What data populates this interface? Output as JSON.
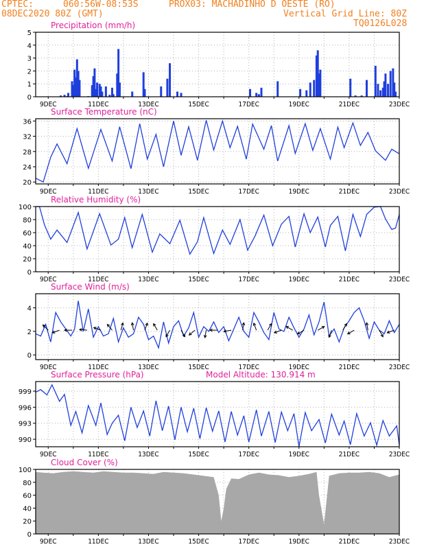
{
  "header": {
    "line1_left": "CPTEC:",
    "coords": "060:56W-08:53S",
    "location": "PROX03: MACHADINHO D OESTE (RO)",
    "line2_left": "08DEC2020 80Z (GMT)",
    "grid_note": "Vertical Grid Line: 80Z",
    "model": "TQ0126L028"
  },
  "colors": {
    "header": "#f08020",
    "title": "#e0209a",
    "series": "#1f3fdc",
    "cloud": "#a8a8a8",
    "grid": "#b0b0b0"
  },
  "chart_data": [
    {
      "type": "bar",
      "title": "Precipitation (mm/h)",
      "x_unit": "days since 08DEC2020 00Z",
      "xlim": [
        8.5,
        23
      ],
      "x_ticks": [
        "9DEC",
        "11DEC",
        "13DEC",
        "15DEC",
        "17DEC",
        "19DEC",
        "21DEC",
        "23DEC"
      ],
      "ylim": [
        0,
        5
      ],
      "y_ticks": [
        0,
        1,
        2,
        3,
        4,
        5
      ],
      "series": [
        {
          "x": [
            9.5,
            9.65,
            9.75,
            9.8,
            9.95,
            10.0,
            10.05,
            10.1,
            10.15,
            10.2,
            10.25,
            10.6,
            10.75,
            10.8,
            10.85,
            10.9,
            10.95,
            11.05,
            11.1,
            11.15,
            11.3,
            11.45,
            11.55,
            11.6,
            11.75,
            11.8,
            11.85,
            12.35,
            12.8,
            12.85,
            13.5,
            13.75,
            13.85,
            14.15,
            14.3,
            17.05,
            17.3,
            17.4,
            17.5,
            18.15,
            19.05,
            19.3,
            19.45,
            19.6,
            19.7,
            19.75,
            19.8,
            19.85,
            21.05,
            21.25,
            21.5,
            21.7,
            22.05,
            22.15,
            22.25,
            22.35,
            22.4,
            22.45,
            22.55,
            22.65,
            22.75,
            22.8,
            22.85
          ],
          "y": [
            0.1,
            0.15,
            0.05,
            0.3,
            1.2,
            0.9,
            2.1,
            1.5,
            2.9,
            2.0,
            1.3,
            0.05,
            0.9,
            1.6,
            2.2,
            0.6,
            1.1,
            1.0,
            0.8,
            0.4,
            0.8,
            0.15,
            0.7,
            0.2,
            1.8,
            3.7,
            1.1,
            0.4,
            1.9,
            0.6,
            0.8,
            1.4,
            2.6,
            0.4,
            0.3,
            0.6,
            0.3,
            0.2,
            0.7,
            1.2,
            0.6,
            0.5,
            1.1,
            1.3,
            3.2,
            3.6,
            1.8,
            2.1,
            1.4,
            0.1,
            0.1,
            1.3,
            2.4,
            1.0,
            0.5,
            0.7,
            1.2,
            1.8,
            1.0,
            2.0,
            2.2,
            1.1,
            0.4
          ]
        }
      ]
    },
    {
      "type": "line",
      "title": "Surface Temperature (nC)",
      "xlim": [
        8.5,
        23
      ],
      "ylim": [
        19.5,
        36.6
      ],
      "y_ticks": [
        20,
        24,
        28,
        32,
        36
      ],
      "series": [
        {
          "x": [
            8.5,
            8.8,
            9.1,
            9.35,
            9.75,
            10.15,
            10.6,
            11.1,
            11.55,
            11.85,
            12.3,
            12.65,
            12.95,
            13.3,
            13.6,
            14.0,
            14.3,
            14.6,
            14.95,
            15.3,
            15.6,
            15.95,
            16.25,
            16.55,
            16.9,
            17.15,
            17.6,
            17.9,
            18.15,
            18.6,
            18.85,
            19.25,
            19.55,
            19.85,
            20.25,
            20.55,
            20.8,
            21.15,
            21.45,
            21.75,
            22.05,
            22.45,
            22.7,
            23.0
          ],
          "y": [
            21,
            20,
            26.5,
            30,
            24.8,
            34,
            23.6,
            33.8,
            25.5,
            34.5,
            23.5,
            35.3,
            26,
            32.5,
            24,
            36,
            27,
            34.5,
            25.7,
            36.2,
            28.4,
            36,
            29,
            34.6,
            26,
            35.2,
            28.6,
            34.8,
            25.5,
            34.8,
            27.5,
            35.3,
            28.3,
            34,
            26,
            34.4,
            29,
            35.5,
            29.6,
            33,
            28.2,
            25.7,
            28.6,
            27.4
          ]
        }
      ]
    },
    {
      "type": "line",
      "title": "Relative Humidity (%)",
      "xlim": [
        8.5,
        23
      ],
      "ylim": [
        0,
        100
      ],
      "y_ticks": [
        0,
        20,
        40,
        60,
        80,
        100
      ],
      "series": [
        {
          "x": [
            8.5,
            8.65,
            8.85,
            9.1,
            9.35,
            9.75,
            10.2,
            10.55,
            11.05,
            11.5,
            11.8,
            12.05,
            12.35,
            12.75,
            13.15,
            13.45,
            13.85,
            14.25,
            14.65,
            14.95,
            15.2,
            15.6,
            15.95,
            16.25,
            16.65,
            16.95,
            17.25,
            17.6,
            17.95,
            18.3,
            18.6,
            18.85,
            19.2,
            19.45,
            19.75,
            20.05,
            20.25,
            20.55,
            20.85,
            21.15,
            21.45,
            21.7,
            22.0,
            22.25,
            22.45,
            22.7,
            22.85,
            23.0
          ],
          "y": [
            100,
            100,
            72,
            50,
            64,
            45,
            91,
            35,
            89,
            41,
            50,
            83,
            37,
            88,
            30,
            58,
            43,
            79,
            27,
            46,
            83,
            28,
            64,
            42,
            80,
            33,
            55,
            87,
            40,
            73,
            85,
            38,
            89,
            60,
            84,
            38,
            71,
            85,
            32,
            88,
            54,
            88,
            99,
            100,
            81,
            65,
            67,
            88
          ]
        }
      ]
    },
    {
      "type": "line",
      "title": "Surface Wind (m/s)",
      "xlim": [
        8.5,
        23
      ],
      "ylim": [
        -0.4,
        5.2
      ],
      "y_ticks": [
        0,
        2,
        4
      ],
      "series": [
        {
          "x": [
            8.5,
            8.7,
            8.9,
            9.1,
            9.3,
            9.5,
            9.7,
            9.9,
            10.05,
            10.2,
            10.4,
            10.6,
            10.8,
            11.0,
            11.2,
            11.4,
            11.6,
            11.8,
            12.0,
            12.2,
            12.4,
            12.6,
            12.8,
            13.0,
            13.2,
            13.4,
            13.6,
            13.8,
            14.0,
            14.2,
            14.4,
            14.6,
            14.8,
            15.0,
            15.2,
            15.4,
            15.6,
            15.8,
            16.0,
            16.2,
            16.4,
            16.6,
            16.8,
            17.0,
            17.2,
            17.4,
            17.6,
            17.8,
            18.0,
            18.2,
            18.4,
            18.6,
            18.8,
            19.0,
            19.2,
            19.4,
            19.6,
            19.8,
            20.0,
            20.2,
            20.4,
            20.6,
            20.8,
            21.0,
            21.2,
            21.4,
            21.6,
            21.8,
            22.0,
            22.2,
            22.4,
            22.6,
            22.8,
            23.0
          ],
          "y": [
            1.8,
            1.6,
            2.6,
            1.1,
            3.6,
            2.8,
            2.2,
            1.6,
            2.2,
            4.6,
            2.0,
            3.9,
            1.5,
            2.4,
            1.6,
            1.8,
            3.1,
            1.1,
            2.3,
            1.5,
            1.8,
            3.2,
            2.6,
            1.3,
            1.6,
            0.6,
            2.8,
            1.0,
            2.4,
            2.9,
            1.6,
            2.3,
            3.6,
            1.5,
            2.4,
            2.0,
            2.8,
            1.9,
            2.4,
            1.2,
            2.2,
            3.2,
            2.0,
            1.5,
            3.6,
            2.8,
            1.9,
            1.3,
            3.6,
            2.2,
            2.0,
            3.2,
            2.3,
            1.5,
            2.2,
            3.4,
            1.7,
            2.8,
            4.5,
            1.6,
            2.2,
            1.1,
            2.3,
            2.9,
            3.6,
            4.0,
            2.9,
            1.4,
            2.8,
            2.1,
            1.8,
            2.9,
            1.9,
            2.6
          ]
        }
      ],
      "vectors_x": [
        9.0,
        9.45,
        9.95,
        10.55,
        11.1,
        11.55,
        11.9,
        12.4,
        12.85,
        13.35,
        13.85,
        14.3,
        14.85,
        15.3,
        15.75,
        16.3,
        16.75,
        17.3,
        17.75,
        18.3,
        18.75,
        19.2,
        19.75,
        20.3,
        20.75,
        21.2,
        21.75,
        22.2,
        22.8
      ],
      "vectors_angle_deg": [
        135,
        200,
        180,
        175,
        160,
        130,
        75,
        100,
        70,
        120,
        240,
        300,
        220,
        260,
        180,
        190,
        80,
        110,
        60,
        200,
        150,
        210,
        30,
        250,
        60,
        210,
        100,
        300,
        200
      ]
    },
    {
      "type": "line",
      "title": "Surface Pressure (hPa)",
      "annotation": "Model Altitude: 130.914 m",
      "xlim": [
        8.5,
        23
      ],
      "ylim": [
        988.6,
        1000.8
      ],
      "y_ticks": [
        990,
        993,
        996,
        999
      ],
      "series": [
        {
          "x": [
            8.5,
            8.7,
            8.95,
            9.15,
            9.45,
            9.65,
            9.9,
            10.1,
            10.35,
            10.6,
            10.9,
            11.1,
            11.35,
            11.55,
            11.8,
            12.05,
            12.3,
            12.55,
            12.8,
            13.05,
            13.3,
            13.55,
            13.8,
            14.05,
            14.3,
            14.55,
            14.8,
            15.05,
            15.3,
            15.55,
            15.8,
            16.05,
            16.3,
            16.55,
            16.8,
            17.0,
            17.3,
            17.5,
            17.8,
            18.05,
            18.3,
            18.55,
            18.8,
            19.0,
            19.25,
            19.5,
            19.8,
            20.05,
            20.3,
            20.6,
            20.8,
            21.05,
            21.3,
            21.6,
            21.85,
            22.1,
            22.35,
            22.6,
            22.9,
            23.0
          ],
          "y": [
            998.8,
            999.3,
            998.3,
            1000.2,
            997.1,
            998.4,
            992.6,
            995.2,
            991.2,
            996.3,
            992.6,
            996.8,
            990.9,
            993.0,
            994.5,
            989.7,
            996.0,
            992.2,
            995.3,
            990.6,
            997.2,
            991.6,
            996.2,
            989.9,
            996.0,
            991.4,
            995.8,
            990.1,
            995.9,
            991.5,
            995.3,
            989.5,
            995.2,
            990.8,
            994.4,
            989.5,
            995.5,
            990.6,
            995.2,
            989.4,
            995.1,
            991.6,
            994.8,
            988.6,
            995.0,
            991.6,
            993.7,
            989.3,
            994.7,
            990.8,
            993.4,
            989.0,
            994.8,
            990.6,
            993.1,
            988.9,
            993.5,
            990.6,
            992.5,
            988.9
          ]
        }
      ]
    },
    {
      "type": "area",
      "title": "Cloud Cover (%)",
      "xlim": [
        8.5,
        23
      ],
      "ylim": [
        0,
        100
      ],
      "y_ticks": [
        0,
        20,
        40,
        60,
        80,
        100
      ],
      "series": [
        {
          "x": [
            8.5,
            8.8,
            9.2,
            9.6,
            10.0,
            10.4,
            10.8,
            11.2,
            11.6,
            12.0,
            12.4,
            12.8,
            13.2,
            13.6,
            14.0,
            14.4,
            14.8,
            15.2,
            15.6,
            15.8,
            15.9,
            16.0,
            16.1,
            16.3,
            16.6,
            17.0,
            17.4,
            17.8,
            18.2,
            18.6,
            19.0,
            19.4,
            19.7,
            19.8,
            20.0,
            20.2,
            20.6,
            21.0,
            21.4,
            21.8,
            22.2,
            22.6,
            23.0
          ],
          "y": [
            96,
            95,
            94,
            96,
            97,
            96,
            95,
            97,
            96,
            95,
            95,
            94,
            93,
            96,
            95,
            94,
            92,
            90,
            88,
            60,
            20,
            40,
            70,
            86,
            85,
            92,
            95,
            92,
            91,
            88,
            90,
            93,
            96,
            60,
            15,
            90,
            94,
            95,
            95,
            96,
            94,
            88,
            92
          ]
        }
      ]
    }
  ]
}
